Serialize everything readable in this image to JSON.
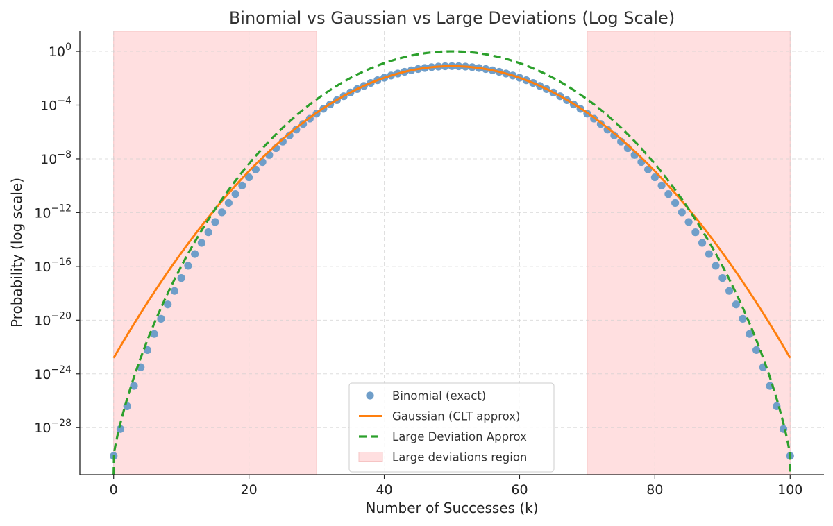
{
  "chart_data": {
    "type": "scatter",
    "title": "Binomial vs Gaussian vs Large Deviations (Log Scale)",
    "xlabel": "Number of Successes (k)",
    "ylabel": "Probability (log scale)",
    "xlim": [
      -5,
      105
    ],
    "ylog10_lim": [
      -31.5,
      1.5
    ],
    "x_ticks": [
      0,
      20,
      40,
      60,
      80,
      100
    ],
    "y_tick_exponents": [
      0,
      -4,
      -8,
      -12,
      -16,
      -20,
      -24,
      -28
    ],
    "grid": true,
    "n": 100,
    "p": 0.5,
    "shaded_regions": [
      {
        "x_start": 0,
        "x_end": 30,
        "label": "Large deviations region",
        "color": "#ffdfe0"
      },
      {
        "x_start": 70,
        "x_end": 100,
        "label": "Large deviations region",
        "color": "#ffdfe0"
      }
    ],
    "series": [
      {
        "name": "Binomial (exact)",
        "kind": "points",
        "color": "#6f9ec9",
        "x_range": [
          0,
          100
        ]
      },
      {
        "name": "Gaussian (CLT approx)",
        "kind": "line",
        "color": "#ff7f0e",
        "x_range": [
          0,
          100
        ]
      },
      {
        "name": "Large Deviation Approx",
        "kind": "dashed-line",
        "color": "#2ca02c",
        "x_range": [
          0,
          100
        ]
      },
      {
        "name": "Large deviations region",
        "kind": "patch",
        "color": "#ffdfe0"
      }
    ],
    "legend_position": "lower-center"
  }
}
